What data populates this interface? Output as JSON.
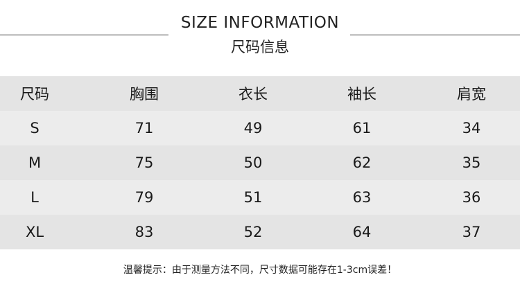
{
  "header": {
    "title": "SIZE INFORMATION",
    "subtitle": "尺码信息"
  },
  "table": {
    "columns": [
      "尺码",
      "胸围",
      "衣长",
      "袖长",
      "肩宽"
    ],
    "rows": [
      [
        "S",
        "71",
        "49",
        "61",
        "34"
      ],
      [
        "M",
        "75",
        "50",
        "62",
        "35"
      ],
      [
        "L",
        "79",
        "51",
        "63",
        "36"
      ],
      [
        "XL",
        "83",
        "52",
        "64",
        "37"
      ]
    ]
  },
  "note": "温馨提示：由于测量方法不同，尺寸数据可能存在1-3cm误差！",
  "colors": {
    "header_row": "#e4e4e4",
    "alt_row": "#ececec",
    "text": "#1a1a1a"
  }
}
